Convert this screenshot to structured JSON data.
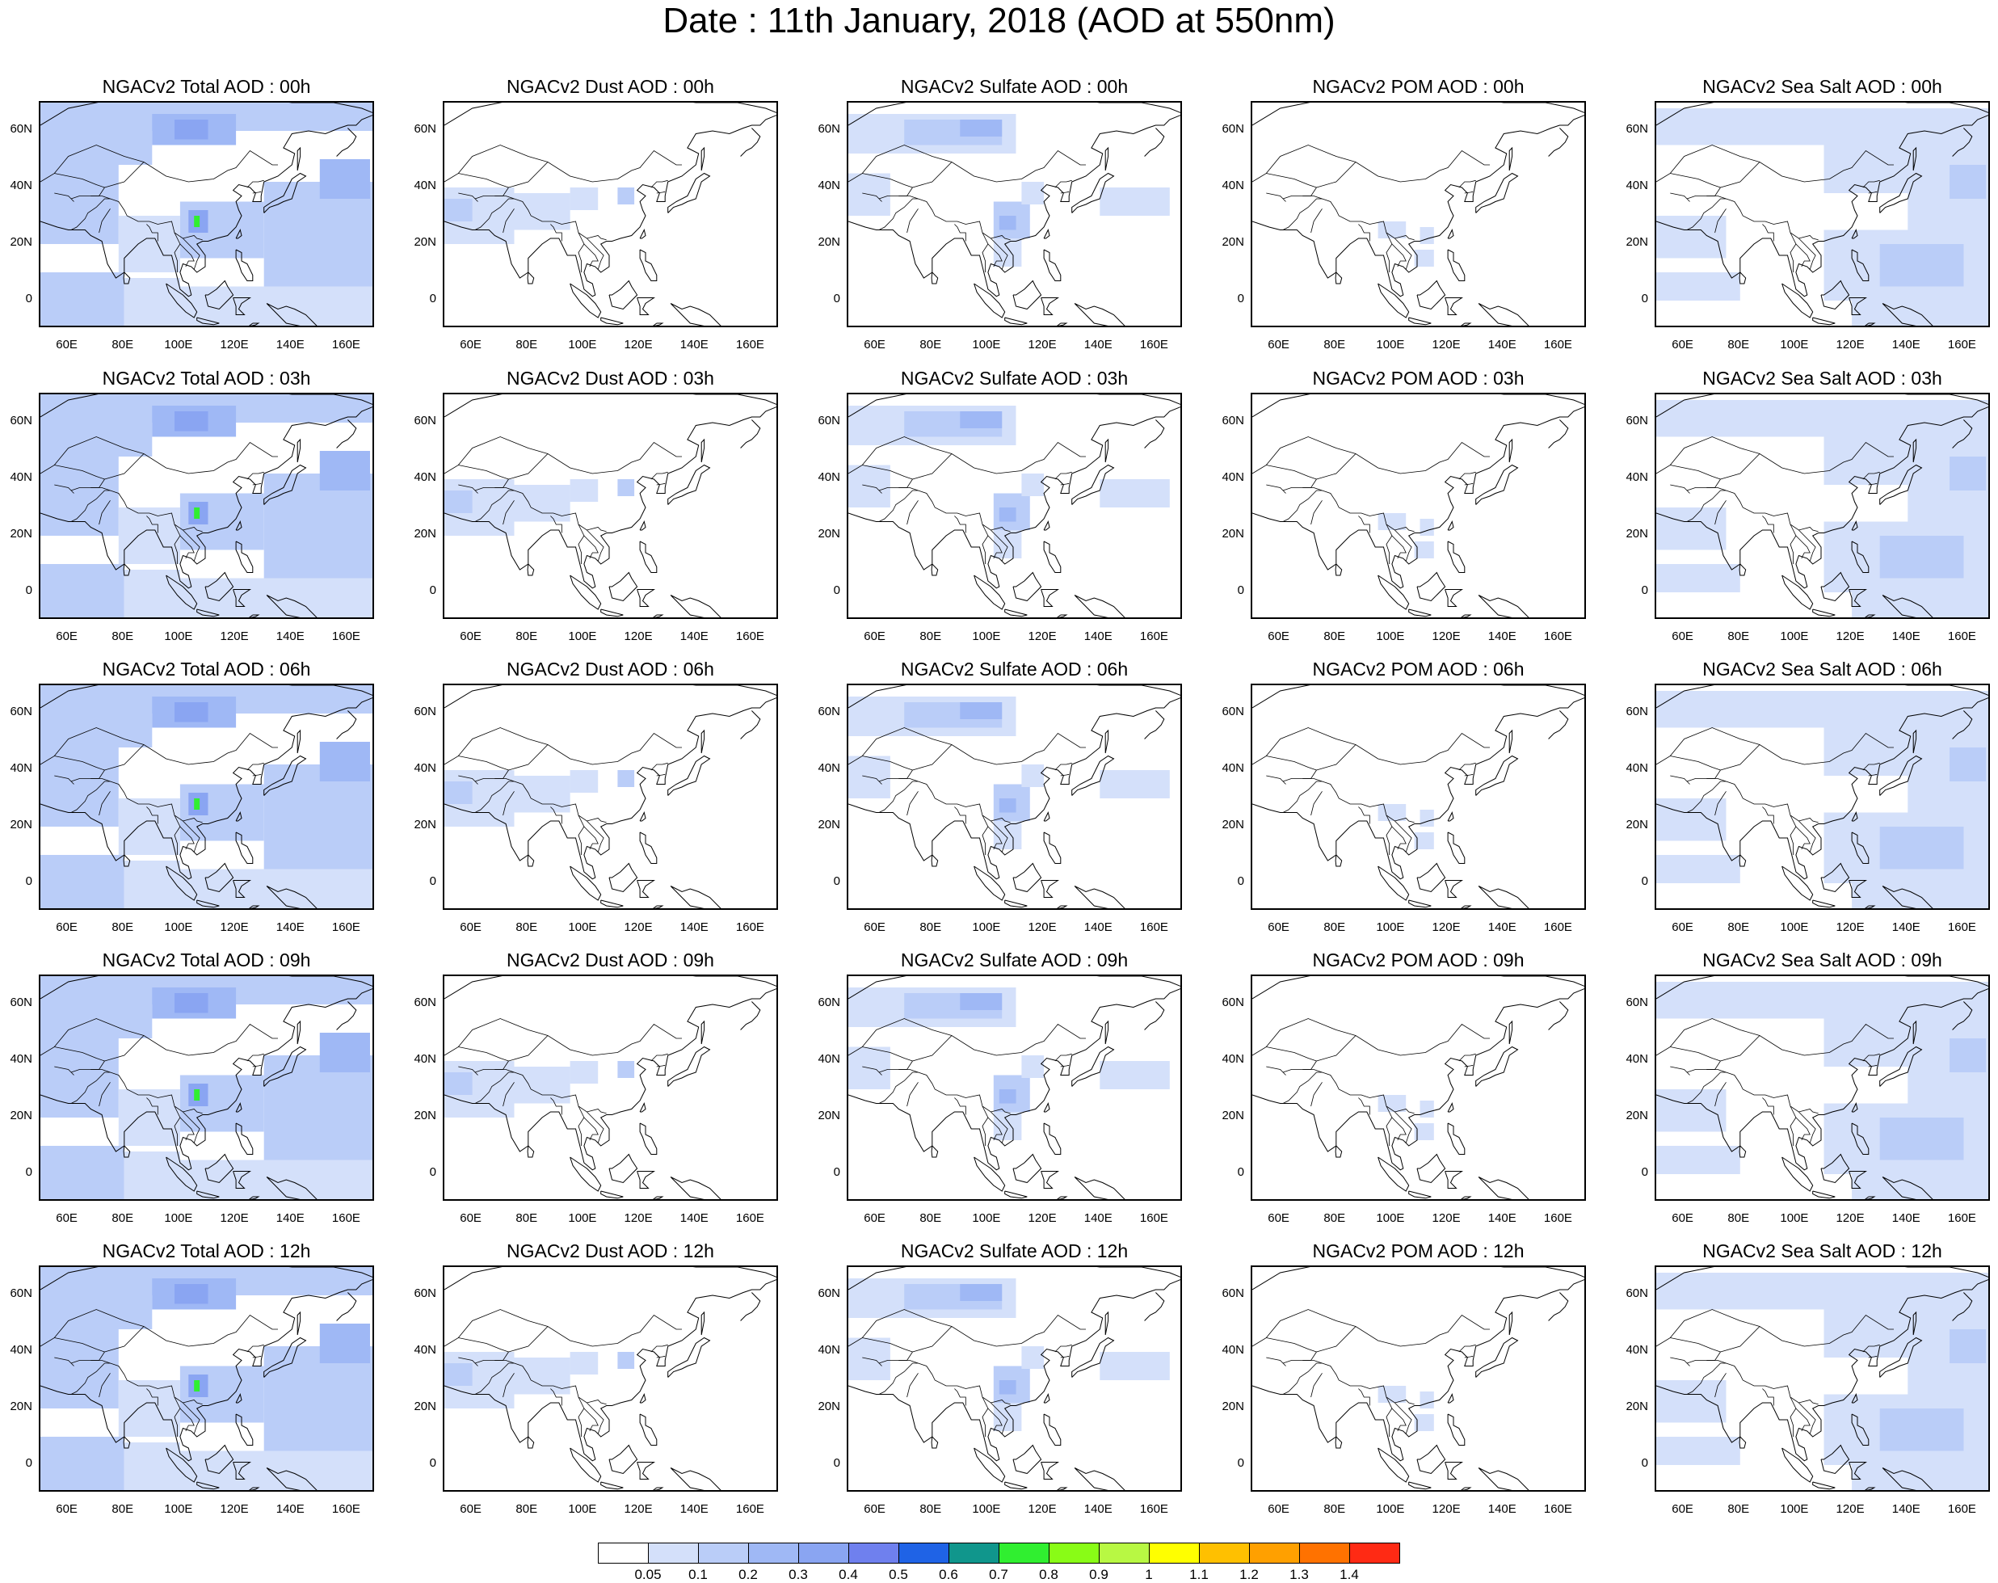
{
  "title": "Date : 11th January, 2018 (AOD at 550nm)",
  "rows": [
    "00h",
    "03h",
    "06h",
    "09h",
    "12h"
  ],
  "panels": [
    [
      "NGACv2 Total AOD : 00h",
      "NGACv2 Dust AOD : 00h",
      "NGACv2 Sulfate AOD : 00h",
      "NGACv2 POM AOD : 00h",
      "NGACv2 Sea Salt AOD : 00h"
    ],
    [
      "NGACv2 Total AOD : 03h",
      "NGACv2 Dust AOD : 03h",
      "NGACv2 Sulfate AOD : 03h",
      "NGACv2 POM AOD : 03h",
      "NGACv2 Sea Salt AOD : 03h"
    ],
    [
      "NGACv2 Total AOD : 06h",
      "NGACv2 Dust AOD : 06h",
      "NGACv2 Sulfate AOD : 06h",
      "NGACv2 POM AOD : 06h",
      "NGACv2 Sea Salt AOD : 06h"
    ],
    [
      "NGACv2 Total AOD : 09h",
      "NGACv2 Dust AOD : 09h",
      "NGACv2 Sulfate AOD : 09h",
      "NGACv2 POM AOD : 09h",
      "NGACv2 Sea Salt  AOD : 09h"
    ],
    [
      "NGACv2 Total AOD  : 12h",
      "NGACv2 Dust AOD : 12h",
      "NGACv2 Sulfate AOD : 12h",
      "NGACv2 POM  AOD : 12h",
      "NGACv2 Sea Salt  AOD : 12h"
    ]
  ],
  "axes": {
    "x_ticks": [
      "60E",
      "80E",
      "100E",
      "120E",
      "140E",
      "160E"
    ],
    "x_values": [
      60,
      80,
      100,
      120,
      140,
      160
    ],
    "y_ticks": [
      "60N",
      "40N",
      "20N",
      "0"
    ],
    "y_values": [
      60,
      40,
      20,
      0
    ],
    "lon_range": [
      50,
      170
    ],
    "lat_range": [
      -10,
      70
    ]
  },
  "colorbar": {
    "labels": [
      "0.05",
      "0.1",
      "0.2",
      "0.3",
      "0.4",
      "0.5",
      "0.6",
      "0.7",
      "0.8",
      "0.9",
      "1",
      "1.1",
      "1.2",
      "1.3",
      "1.4"
    ],
    "colors": [
      "#ffffff",
      "#d4e0fa",
      "#bacdf8",
      "#9fb8f5",
      "#8aa5f2",
      "#6f80ee",
      "#1f63e6",
      "#10968c",
      "#30ef30",
      "#89fc16",
      "#b8f843",
      "#ffff00",
      "#ffc000",
      "#ffa000",
      "#ff7200",
      "#ff2a14"
    ]
  }
}
